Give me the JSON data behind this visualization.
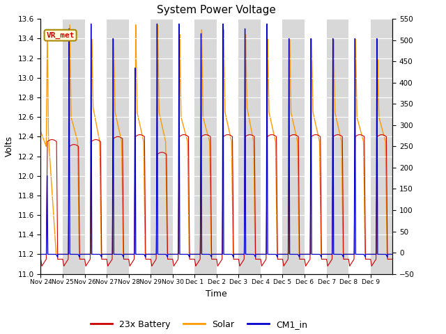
{
  "title": "System Power Voltage",
  "xlabel": "Time",
  "ylabel_left": "Volts",
  "ylim_left": [
    11.0,
    13.6
  ],
  "ylim_right": [
    -50,
    550
  ],
  "yticks_left": [
    11.0,
    11.2,
    11.4,
    11.6,
    11.8,
    12.0,
    12.2,
    12.4,
    12.6,
    12.8,
    13.0,
    13.2,
    13.4,
    13.6
  ],
  "yticks_right": [
    -50,
    0,
    50,
    100,
    150,
    200,
    250,
    300,
    350,
    400,
    450,
    500,
    550
  ],
  "colors": {
    "battery": "#cc0000",
    "solar": "#ff9900",
    "cm1": "#0000cc"
  },
  "legend_labels": [
    "23x Battery",
    "Solar",
    "CM1_in"
  ],
  "vr_met_label": "VR_met",
  "bg_stripe_color": "#d8d8d8",
  "n_days": 16,
  "x_tick_labels": [
    "Nov 24",
    "Nov 25",
    "Nov 26",
    "Nov 27",
    "Nov 28",
    "Nov 29",
    "Nov 30",
    "Dec 1",
    "Dec 2",
    "Dec 3",
    "Dec 4",
    "Dec 5",
    "Dec 6",
    "Dec 7",
    "Dec 8",
    "Dec 9"
  ]
}
